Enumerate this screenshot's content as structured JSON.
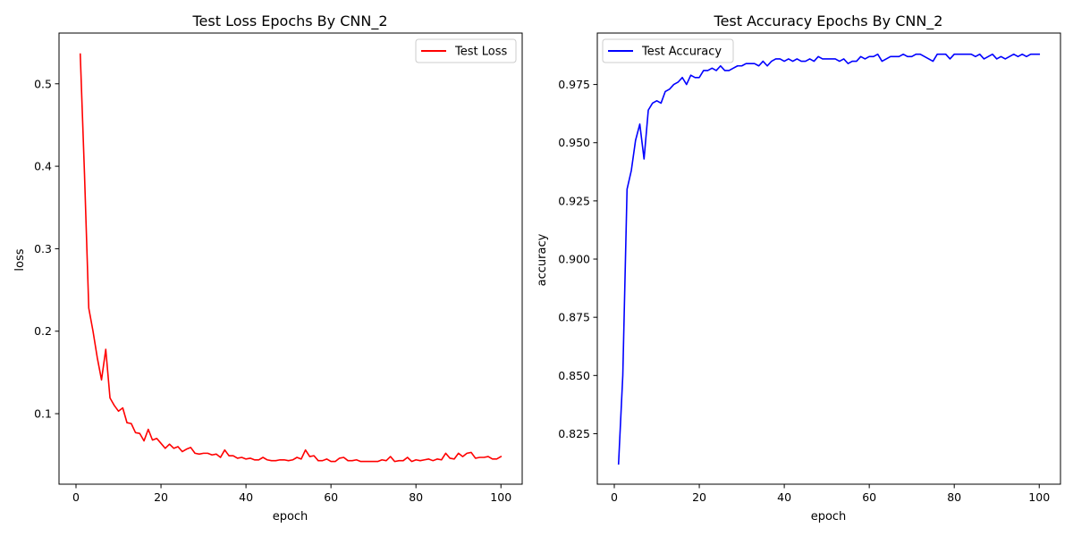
{
  "chart_data": [
    {
      "type": "line",
      "title": "Test Loss Epochs By CNN_2",
      "xlabel": "epoch",
      "ylabel": "loss",
      "xlim": [
        -4.0,
        105.0
      ],
      "ylim": [
        0.0145,
        0.5615
      ],
      "x_ticks": [
        0,
        20,
        40,
        60,
        80,
        100
      ],
      "y_ticks": [
        0.1,
        0.2,
        0.3,
        0.4,
        0.5
      ],
      "x_tick_labels": [
        "0",
        "20",
        "40",
        "60",
        "80",
        "100"
      ],
      "y_tick_labels": [
        "0.1",
        "0.2",
        "0.3",
        "0.4",
        "0.5"
      ],
      "grid": false,
      "legend_position": "top-right",
      "series": [
        {
          "name": "Test Loss",
          "color": "#ff0000",
          "x": [
            1,
            2,
            3,
            4,
            5,
            6,
            7,
            8,
            9,
            10,
            11,
            12,
            13,
            14,
            15,
            16,
            17,
            18,
            19,
            20,
            21,
            22,
            23,
            24,
            25,
            26,
            27,
            28,
            29,
            30,
            31,
            32,
            33,
            34,
            35,
            36,
            37,
            38,
            39,
            40,
            41,
            42,
            43,
            44,
            45,
            46,
            47,
            48,
            49,
            50,
            51,
            52,
            53,
            54,
            55,
            56,
            57,
            58,
            59,
            60,
            61,
            62,
            63,
            64,
            65,
            66,
            67,
            68,
            69,
            70,
            71,
            72,
            73,
            74,
            75,
            76,
            77,
            78,
            79,
            80,
            81,
            82,
            83,
            84,
            85,
            86,
            87,
            88,
            89,
            90,
            91,
            92,
            93,
            94,
            95,
            96,
            97,
            98,
            99,
            100
          ],
          "values": [
            0.536,
            0.39,
            0.228,
            0.2,
            0.168,
            0.141,
            0.178,
            0.119,
            0.11,
            0.103,
            0.107,
            0.089,
            0.088,
            0.077,
            0.076,
            0.067,
            0.081,
            0.068,
            0.07,
            0.064,
            0.058,
            0.063,
            0.058,
            0.06,
            0.054,
            0.057,
            0.059,
            0.052,
            0.051,
            0.052,
            0.052,
            0.05,
            0.051,
            0.047,
            0.056,
            0.049,
            0.049,
            0.046,
            0.047,
            0.045,
            0.046,
            0.044,
            0.044,
            0.047,
            0.044,
            0.043,
            0.043,
            0.044,
            0.044,
            0.043,
            0.044,
            0.047,
            0.045,
            0.056,
            0.048,
            0.049,
            0.043,
            0.043,
            0.045,
            0.042,
            0.042,
            0.046,
            0.047,
            0.043,
            0.043,
            0.044,
            0.042,
            0.042,
            0.042,
            0.042,
            0.042,
            0.044,
            0.043,
            0.048,
            0.042,
            0.043,
            0.043,
            0.047,
            0.042,
            0.044,
            0.043,
            0.044,
            0.045,
            0.043,
            0.045,
            0.044,
            0.052,
            0.046,
            0.045,
            0.052,
            0.048,
            0.052,
            0.053,
            0.046,
            0.047,
            0.047,
            0.048,
            0.045,
            0.045,
            0.048
          ]
        }
      ]
    },
    {
      "type": "line",
      "title": "Test Accuracy Epochs By CNN_2",
      "xlabel": "epoch",
      "ylabel": "accuracy",
      "xlim": [
        -4.0,
        105.0
      ],
      "ylim": [
        0.8033,
        0.9971
      ],
      "x_ticks": [
        0,
        20,
        40,
        60,
        80,
        100
      ],
      "y_ticks": [
        0.825,
        0.85,
        0.875,
        0.9,
        0.925,
        0.95,
        0.975
      ],
      "x_tick_labels": [
        "0",
        "20",
        "40",
        "60",
        "80",
        "100"
      ],
      "y_tick_labels": [
        "0.825",
        "0.850",
        "0.875",
        "0.900",
        "0.925",
        "0.950",
        "0.975"
      ],
      "grid": false,
      "legend_position": "top-left",
      "series": [
        {
          "name": "Test Accuracy",
          "color": "#0000ff",
          "x": [
            1,
            2,
            3,
            4,
            5,
            6,
            7,
            8,
            9,
            10,
            11,
            12,
            13,
            14,
            15,
            16,
            17,
            18,
            19,
            20,
            21,
            22,
            23,
            24,
            25,
            26,
            27,
            28,
            29,
            30,
            31,
            32,
            33,
            34,
            35,
            36,
            37,
            38,
            39,
            40,
            41,
            42,
            43,
            44,
            45,
            46,
            47,
            48,
            49,
            50,
            51,
            52,
            53,
            54,
            55,
            56,
            57,
            58,
            59,
            60,
            61,
            62,
            63,
            64,
            65,
            66,
            67,
            68,
            69,
            70,
            71,
            72,
            73,
            74,
            75,
            76,
            77,
            78,
            79,
            80,
            81,
            82,
            83,
            84,
            85,
            86,
            87,
            88,
            89,
            90,
            91,
            92,
            93,
            94,
            95,
            96,
            97,
            98,
            99,
            100
          ],
          "values": [
            0.812,
            0.85,
            0.93,
            0.938,
            0.951,
            0.958,
            0.943,
            0.964,
            0.967,
            0.968,
            0.967,
            0.972,
            0.973,
            0.975,
            0.976,
            0.978,
            0.975,
            0.979,
            0.978,
            0.978,
            0.981,
            0.981,
            0.982,
            0.981,
            0.983,
            0.981,
            0.981,
            0.982,
            0.983,
            0.983,
            0.984,
            0.984,
            0.984,
            0.983,
            0.985,
            0.983,
            0.985,
            0.986,
            0.986,
            0.985,
            0.986,
            0.985,
            0.986,
            0.985,
            0.985,
            0.986,
            0.985,
            0.987,
            0.986,
            0.986,
            0.986,
            0.986,
            0.985,
            0.986,
            0.984,
            0.985,
            0.985,
            0.987,
            0.986,
            0.987,
            0.987,
            0.988,
            0.985,
            0.986,
            0.987,
            0.987,
            0.987,
            0.988,
            0.987,
            0.987,
            0.988,
            0.988,
            0.987,
            0.986,
            0.985,
            0.988,
            0.988,
            0.988,
            0.986,
            0.988,
            0.988,
            0.988,
            0.988,
            0.988,
            0.987,
            0.988,
            0.986,
            0.987,
            0.988,
            0.986,
            0.987,
            0.986,
            0.987,
            0.988,
            0.987,
            0.988,
            0.987,
            0.988,
            0.988,
            0.988
          ]
        }
      ]
    }
  ]
}
